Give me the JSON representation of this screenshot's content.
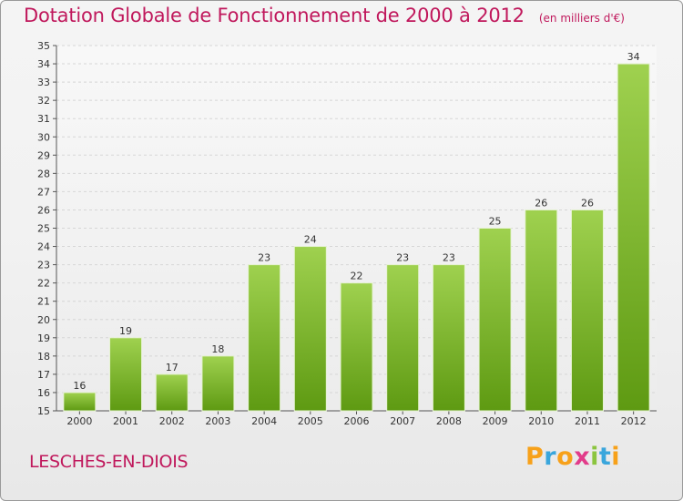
{
  "header": {
    "title": "Dotation Globale de Fonctionnement de 2000 à 2012",
    "unit": "(en milliers d'€)"
  },
  "footer": {
    "commune": "LESCHES-EN-DIOIS",
    "logo_text": "Proxiti"
  },
  "colors": {
    "title": "#c0185c",
    "bar_top": "#9fd14f",
    "bar_bottom": "#5e9a12",
    "logo": [
      "#f7a11a",
      "#3aa6dc",
      "#f7a11a",
      "#e23c8a",
      "#8bc53f",
      "#3aa6dc",
      "#f7a11a"
    ]
  },
  "chart_data": {
    "type": "bar",
    "categories": [
      "2000",
      "2001",
      "2002",
      "2003",
      "2004",
      "2005",
      "2006",
      "2007",
      "2008",
      "2009",
      "2010",
      "2011",
      "2012"
    ],
    "values": [
      16,
      19,
      17,
      18,
      23,
      24,
      22,
      23,
      23,
      25,
      26,
      26,
      34
    ],
    "ylim": [
      15,
      35
    ],
    "yticks": [
      15,
      16,
      17,
      18,
      19,
      20,
      21,
      22,
      23,
      24,
      25,
      26,
      27,
      28,
      29,
      30,
      31,
      32,
      33,
      34,
      35
    ],
    "grid": true,
    "data_labels": true
  }
}
